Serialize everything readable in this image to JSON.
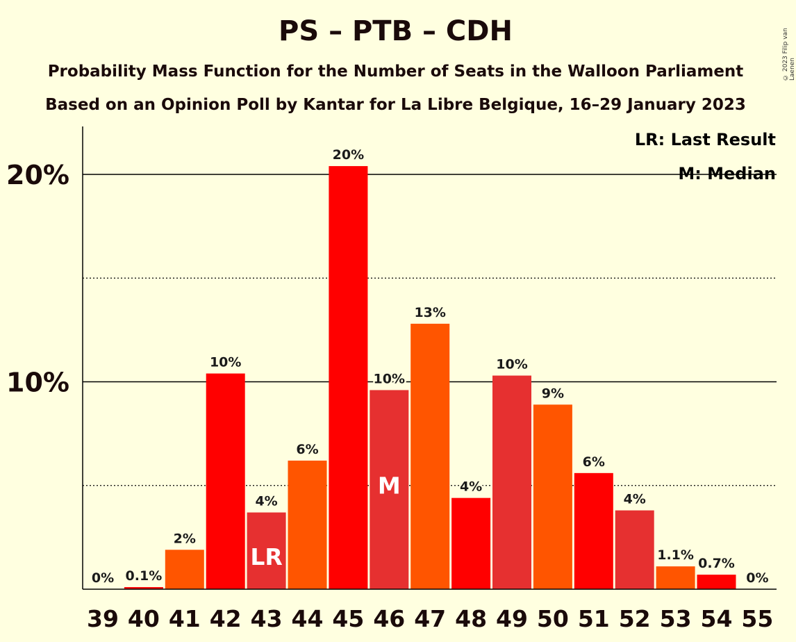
{
  "title": "PS – PTB – CDH",
  "subtitle1": "Probability Mass Function for the Number of Seats in the Walloon Parliament",
  "subtitle2": "Based on an Opinion Poll by Kantar for La Libre Belgique, 16–29 January 2023",
  "copyright": "© 2023 Filip van Laenen",
  "legend": {
    "last_result": "LR: Last Result",
    "median": "M: Median"
  },
  "colors": {
    "background": "#FFFFE0",
    "red": "#FF0000",
    "orange": "#FF5500",
    "crimson": "#E63030"
  },
  "chart_data": {
    "type": "bar",
    "categories": [
      "39",
      "40",
      "41",
      "42",
      "43",
      "44",
      "45",
      "46",
      "47",
      "48",
      "49",
      "50",
      "51",
      "52",
      "53",
      "54",
      "55"
    ],
    "values": [
      0,
      0.1,
      1.9,
      10.4,
      3.7,
      6.2,
      20.4,
      9.6,
      12.8,
      4.4,
      10.3,
      8.9,
      5.6,
      3.8,
      1.1,
      0.7,
      0
    ],
    "labels": [
      "0%",
      "0.1%",
      "2%",
      "10%",
      "4%",
      "6%",
      "20%",
      "10%",
      "13%",
      "4%",
      "10%",
      "9%",
      "6%",
      "4%",
      "1.1%",
      "0.7%",
      "0%"
    ],
    "bar_colors": [
      "#FF0000",
      "#FF0000",
      "#FF5500",
      "#FF0000",
      "#E63030",
      "#FF5500",
      "#FF0000",
      "#E63030",
      "#FF5500",
      "#FF0000",
      "#E63030",
      "#FF5500",
      "#FF0000",
      "#E63030",
      "#FF5500",
      "#FF0000",
      "#E63030"
    ],
    "markers": {
      "43": "LR",
      "46": "M"
    },
    "yticks": [
      {
        "value": 10,
        "label": "10%"
      },
      {
        "value": 20,
        "label": "20%"
      }
    ],
    "dotted_gridlines": [
      5,
      15
    ],
    "ylim": [
      0,
      22.3
    ],
    "legend_position": "top-right"
  }
}
